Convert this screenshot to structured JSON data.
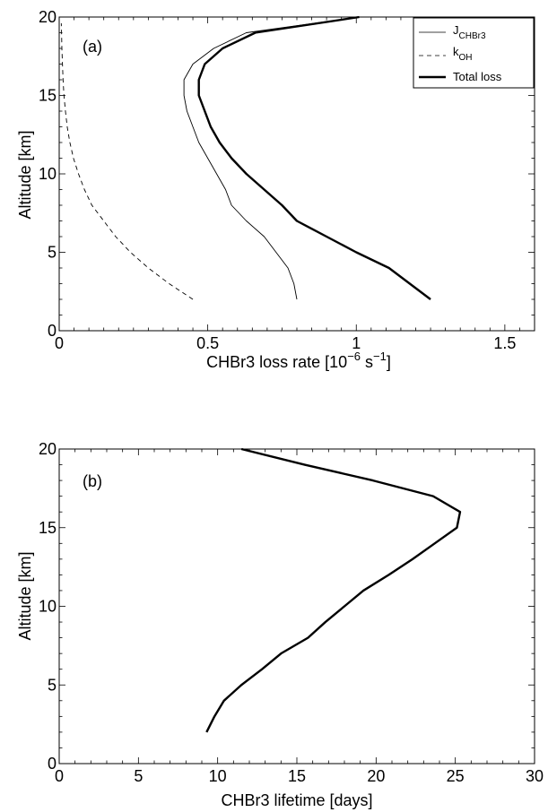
{
  "chart_data": [
    {
      "type": "line",
      "panel_label": "(a)",
      "xlabel_main": "CHBr3 loss rate [10",
      "xlabel_exp1": "−6",
      "xlabel_mid": " s",
      "xlabel_exp2": "−1",
      "xlabel_end": "]",
      "ylabel": "Altitude [km]",
      "xlim": [
        0,
        1.6
      ],
      "ylim": [
        0,
        20
      ],
      "xticks": [
        "0",
        "0.5",
        "1",
        "1.5"
      ],
      "yticks": [
        "0",
        "5",
        "10",
        "15",
        "20"
      ],
      "legend_position": "top-right",
      "series": [
        {
          "name_main": "J",
          "name_sub": "CHBr3",
          "style": "thin",
          "points": [
            [
              0.8,
              2
            ],
            [
              0.79,
              3
            ],
            [
              0.77,
              4
            ],
            [
              0.73,
              5
            ],
            [
              0.69,
              6
            ],
            [
              0.63,
              7
            ],
            [
              0.58,
              8
            ],
            [
              0.56,
              9
            ],
            [
              0.53,
              10
            ],
            [
              0.5,
              11
            ],
            [
              0.47,
              12
            ],
            [
              0.45,
              13
            ],
            [
              0.43,
              14
            ],
            [
              0.42,
              15
            ],
            [
              0.42,
              16
            ],
            [
              0.45,
              17
            ],
            [
              0.52,
              18
            ],
            [
              0.63,
              19
            ],
            [
              1.01,
              20
            ]
          ]
        },
        {
          "name_main": "k",
          "name_sub": "OH",
          "style": "dashed",
          "points": [
            [
              0.45,
              2
            ],
            [
              0.37,
              3
            ],
            [
              0.3,
              4
            ],
            [
              0.24,
              5
            ],
            [
              0.19,
              6
            ],
            [
              0.15,
              7
            ],
            [
              0.11,
              8
            ],
            [
              0.085,
              9
            ],
            [
              0.065,
              10
            ],
            [
              0.048,
              11
            ],
            [
              0.036,
              12
            ],
            [
              0.027,
              13
            ],
            [
              0.021,
              14
            ],
            [
              0.016,
              15
            ],
            [
              0.013,
              16
            ],
            [
              0.011,
              17
            ],
            [
              0.009,
              18
            ],
            [
              0.008,
              19
            ],
            [
              0.007,
              19.6
            ]
          ]
        },
        {
          "name_main": "Total loss",
          "name_sub": "",
          "style": "thick",
          "points": [
            [
              1.25,
              2
            ],
            [
              1.18,
              3
            ],
            [
              1.11,
              4
            ],
            [
              1.0,
              5
            ],
            [
              0.9,
              6
            ],
            [
              0.8,
              7
            ],
            [
              0.75,
              8
            ],
            [
              0.69,
              9
            ],
            [
              0.63,
              10
            ],
            [
              0.58,
              11
            ],
            [
              0.54,
              12
            ],
            [
              0.51,
              13
            ],
            [
              0.49,
              14
            ],
            [
              0.47,
              15
            ],
            [
              0.47,
              16
            ],
            [
              0.49,
              17
            ],
            [
              0.55,
              18
            ],
            [
              0.66,
              19
            ],
            [
              1.01,
              20
            ]
          ]
        }
      ]
    },
    {
      "type": "line",
      "panel_label": "(b)",
      "xlabel": "CHBr3 lifetime [days]",
      "ylabel": "Altitude [km]",
      "xlim": [
        0,
        30
      ],
      "ylim": [
        0,
        20
      ],
      "xticks": [
        "0",
        "5",
        "10",
        "15",
        "20",
        "25",
        "30"
      ],
      "yticks": [
        "0",
        "5",
        "10",
        "15",
        "20"
      ],
      "series": [
        {
          "style": "thick",
          "points": [
            [
              9.3,
              2
            ],
            [
              9.8,
              3
            ],
            [
              10.4,
              4
            ],
            [
              11.5,
              5
            ],
            [
              12.8,
              6
            ],
            [
              14.0,
              7
            ],
            [
              15.7,
              8
            ],
            [
              16.8,
              9
            ],
            [
              18.0,
              10
            ],
            [
              19.2,
              11
            ],
            [
              20.8,
              12
            ],
            [
              22.3,
              13
            ],
            [
              23.7,
              14
            ],
            [
              25.1,
              15
            ],
            [
              25.3,
              16
            ],
            [
              23.6,
              17
            ],
            [
              19.8,
              18
            ],
            [
              15.5,
              19
            ],
            [
              11.5,
              20
            ]
          ]
        }
      ]
    }
  ]
}
